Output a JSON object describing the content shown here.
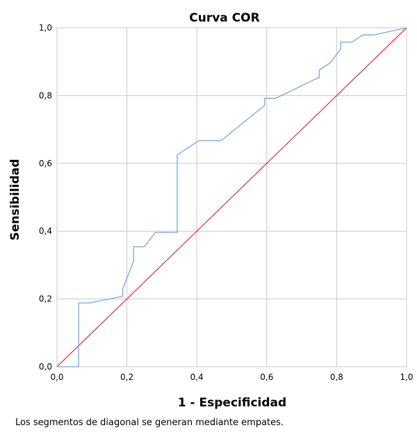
{
  "chart_data": {
    "type": "line",
    "title": "Curva COR",
    "xlabel": "1 - Especificidad",
    "ylabel": "Sensibilidad",
    "xlim": [
      0,
      1
    ],
    "ylim": [
      0,
      1
    ],
    "xticks": [
      "0,0",
      "0,2",
      "0,4",
      "0,6",
      "0,8",
      "1,0"
    ],
    "yticks": [
      "0,0",
      "0,2",
      "0,4",
      "0,6",
      "0,8",
      "1,0"
    ],
    "grid": true,
    "legend": "none",
    "series": [
      {
        "color": "#6fa8e8",
        "x": [
          0.0,
          0.062,
          0.062,
          0.094,
          0.188,
          0.188,
          0.219,
          0.219,
          0.25,
          0.281,
          0.344,
          0.344,
          0.406,
          0.469,
          0.594,
          0.594,
          0.625,
          0.75,
          0.75,
          0.781,
          0.812,
          0.812,
          0.844,
          0.875,
          0.906,
          1.0
        ],
        "y": [
          0.0,
          0.0,
          0.188,
          0.188,
          0.208,
          0.229,
          0.312,
          0.354,
          0.354,
          0.396,
          0.396,
          0.625,
          0.667,
          0.667,
          0.771,
          0.792,
          0.792,
          0.854,
          0.875,
          0.896,
          0.938,
          0.958,
          0.958,
          0.979,
          0.979,
          1.0
        ]
      },
      {
        "color": "#e0335a",
        "x": [
          0,
          1
        ],
        "y": [
          0,
          1
        ]
      }
    ]
  },
  "footnote": "Los segmentos de diagonal se generan mediante empates."
}
